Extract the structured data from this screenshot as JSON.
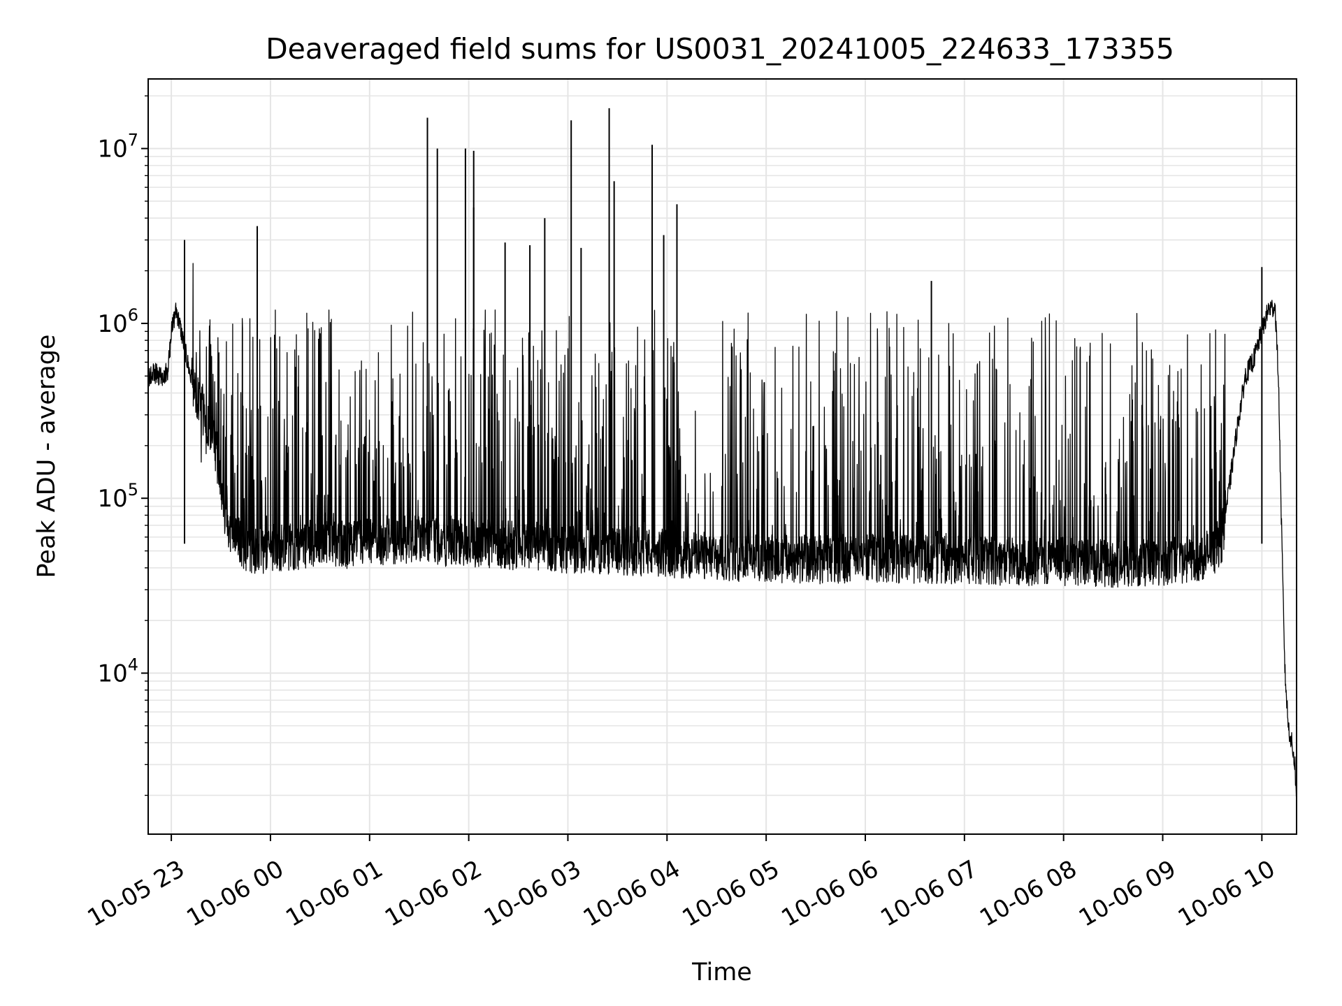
{
  "chart_data": {
    "type": "line",
    "title": "Deaveraged field sums for US0031_20241005_224633_173355",
    "xlabel": "Time",
    "ylabel": "Peak ADU - average",
    "yscale": "log",
    "xlim": [
      "2024-10-05 22:46",
      "2024-10-06 10:21"
    ],
    "ylim": [
      1200,
      25000000
    ],
    "grid": true,
    "x_ticks": [
      {
        "time": "2024-10-05 23:00",
        "label": "10-05 23"
      },
      {
        "time": "2024-10-06 00:00",
        "label": "10-06 00"
      },
      {
        "time": "2024-10-06 01:00",
        "label": "10-06 01"
      },
      {
        "time": "2024-10-06 02:00",
        "label": "10-06 02"
      },
      {
        "time": "2024-10-06 03:00",
        "label": "10-06 03"
      },
      {
        "time": "2024-10-06 04:00",
        "label": "10-06 04"
      },
      {
        "time": "2024-10-06 05:00",
        "label": "10-06 05"
      },
      {
        "time": "2024-10-06 06:00",
        "label": "10-06 06"
      },
      {
        "time": "2024-10-06 07:00",
        "label": "10-06 07"
      },
      {
        "time": "2024-10-06 08:00",
        "label": "10-06 08"
      },
      {
        "time": "2024-10-06 09:00",
        "label": "10-06 09"
      },
      {
        "time": "2024-10-06 10:00",
        "label": "10-06 10"
      }
    ],
    "y_ticks": [
      {
        "value": 10000,
        "base": "10",
        "exp": "4"
      },
      {
        "value": 100000,
        "base": "10",
        "exp": "5"
      },
      {
        "value": 1000000,
        "base": "10",
        "exp": "6"
      },
      {
        "value": 10000000,
        "base": "10",
        "exp": "7"
      }
    ],
    "colors": {
      "line": "#000000",
      "grid": "#e5e5e5"
    },
    "series": [
      {
        "x": [
          "2024-10-05 22:46",
          "2024-10-05 22:50",
          "2024-10-05 22:54",
          "2024-10-05 22:58",
          "2024-10-05 23:00",
          "2024-10-05 23:03",
          "2024-10-05 23:06",
          "2024-10-05 23:09",
          "2024-10-05 23:12",
          "2024-10-05 23:15",
          "2024-10-05 23:18",
          "2024-10-05 23:21",
          "2024-10-05 23:24",
          "2024-10-05 23:27",
          "2024-10-05 23:30",
          "2024-10-05 23:33",
          "2024-10-05 23:36",
          "2024-10-05 23:40",
          "2024-10-05 23:45",
          "2024-10-05 23:50",
          "2024-10-05 23:55",
          "2024-10-06 00:00",
          "2024-10-06 00:10",
          "2024-10-06 00:20",
          "2024-10-06 00:30",
          "2024-10-06 00:40",
          "2024-10-06 00:50",
          "2024-10-06 01:00",
          "2024-10-06 01:15",
          "2024-10-06 01:30",
          "2024-10-06 01:45",
          "2024-10-06 02:00",
          "2024-10-06 02:30",
          "2024-10-06 03:00",
          "2024-10-06 03:30",
          "2024-10-06 04:00",
          "2024-10-06 04:30",
          "2024-10-06 05:00",
          "2024-10-06 05:30",
          "2024-10-06 06:00",
          "2024-10-06 06:30",
          "2024-10-06 07:00",
          "2024-10-06 07:30",
          "2024-10-06 08:00",
          "2024-10-06 08:30",
          "2024-10-06 09:00",
          "2024-10-06 09:20",
          "2024-10-06 09:35",
          "2024-10-06 09:40",
          "2024-10-06 09:45",
          "2024-10-06 09:50",
          "2024-10-06 09:55",
          "2024-10-06 10:00",
          "2024-10-06 10:04",
          "2024-10-06 10:08",
          "2024-10-06 10:10",
          "2024-10-06 10:12",
          "2024-10-06 10:14",
          "2024-10-06 10:16",
          "2024-10-06 10:18",
          "2024-10-06 10:20",
          "2024-10-06 10:21"
        ],
        "y": [
          480000,
          520000,
          500000,
          530000,
          900000,
          1200000,
          900000,
          650000,
          480000,
          400000,
          350000,
          300000,
          250000,
          180000,
          120000,
          80000,
          65000,
          60000,
          55000,
          52000,
          52000,
          55000,
          54000,
          56000,
          58000,
          57000,
          56000,
          58000,
          60000,
          60000,
          58000,
          58000,
          55000,
          53000,
          52000,
          50000,
          48000,
          47000,
          46000,
          47000,
          46000,
          46000,
          45000,
          45000,
          44000,
          45000,
          46000,
          55000,
          110000,
          250000,
          500000,
          620000,
          900000,
          1200000,
          1250000,
          500000,
          60000,
          10000,
          5000,
          4000,
          3000,
          1900
        ]
      }
    ],
    "band_summary": {
      "floor_typical": 55000,
      "floor_min": 30000,
      "burst_ceiling": 1200000
    },
    "spikes": [
      {
        "x": "2024-10-05 23:52",
        "y": 3600000
      },
      {
        "x": "2024-10-05 23:08",
        "y": 3000000
      },
      {
        "x": "2024-10-06 01:35",
        "y": 15000000
      },
      {
        "x": "2024-10-06 01:41",
        "y": 10000000
      },
      {
        "x": "2024-10-06 01:58",
        "y": 10000000
      },
      {
        "x": "2024-10-06 02:03",
        "y": 9700000
      },
      {
        "x": "2024-10-06 02:03",
        "y": 4600000
      },
      {
        "x": "2024-10-06 02:22",
        "y": 2900000
      },
      {
        "x": "2024-10-06 02:37",
        "y": 2800000
      },
      {
        "x": "2024-10-06 02:46",
        "y": 4000000
      },
      {
        "x": "2024-10-06 03:02",
        "y": 14500000
      },
      {
        "x": "2024-10-06 03:08",
        "y": 2700000
      },
      {
        "x": "2024-10-06 03:25",
        "y": 17000000
      },
      {
        "x": "2024-10-06 03:28",
        "y": 6500000
      },
      {
        "x": "2024-10-06 03:51",
        "y": 10500000
      },
      {
        "x": "2024-10-06 03:58",
        "y": 3200000
      },
      {
        "x": "2024-10-06 04:06",
        "y": 4800000
      },
      {
        "x": "2024-10-06 06:40",
        "y": 1750000
      },
      {
        "x": "2024-10-06 10:00",
        "y": 2100000
      }
    ]
  }
}
